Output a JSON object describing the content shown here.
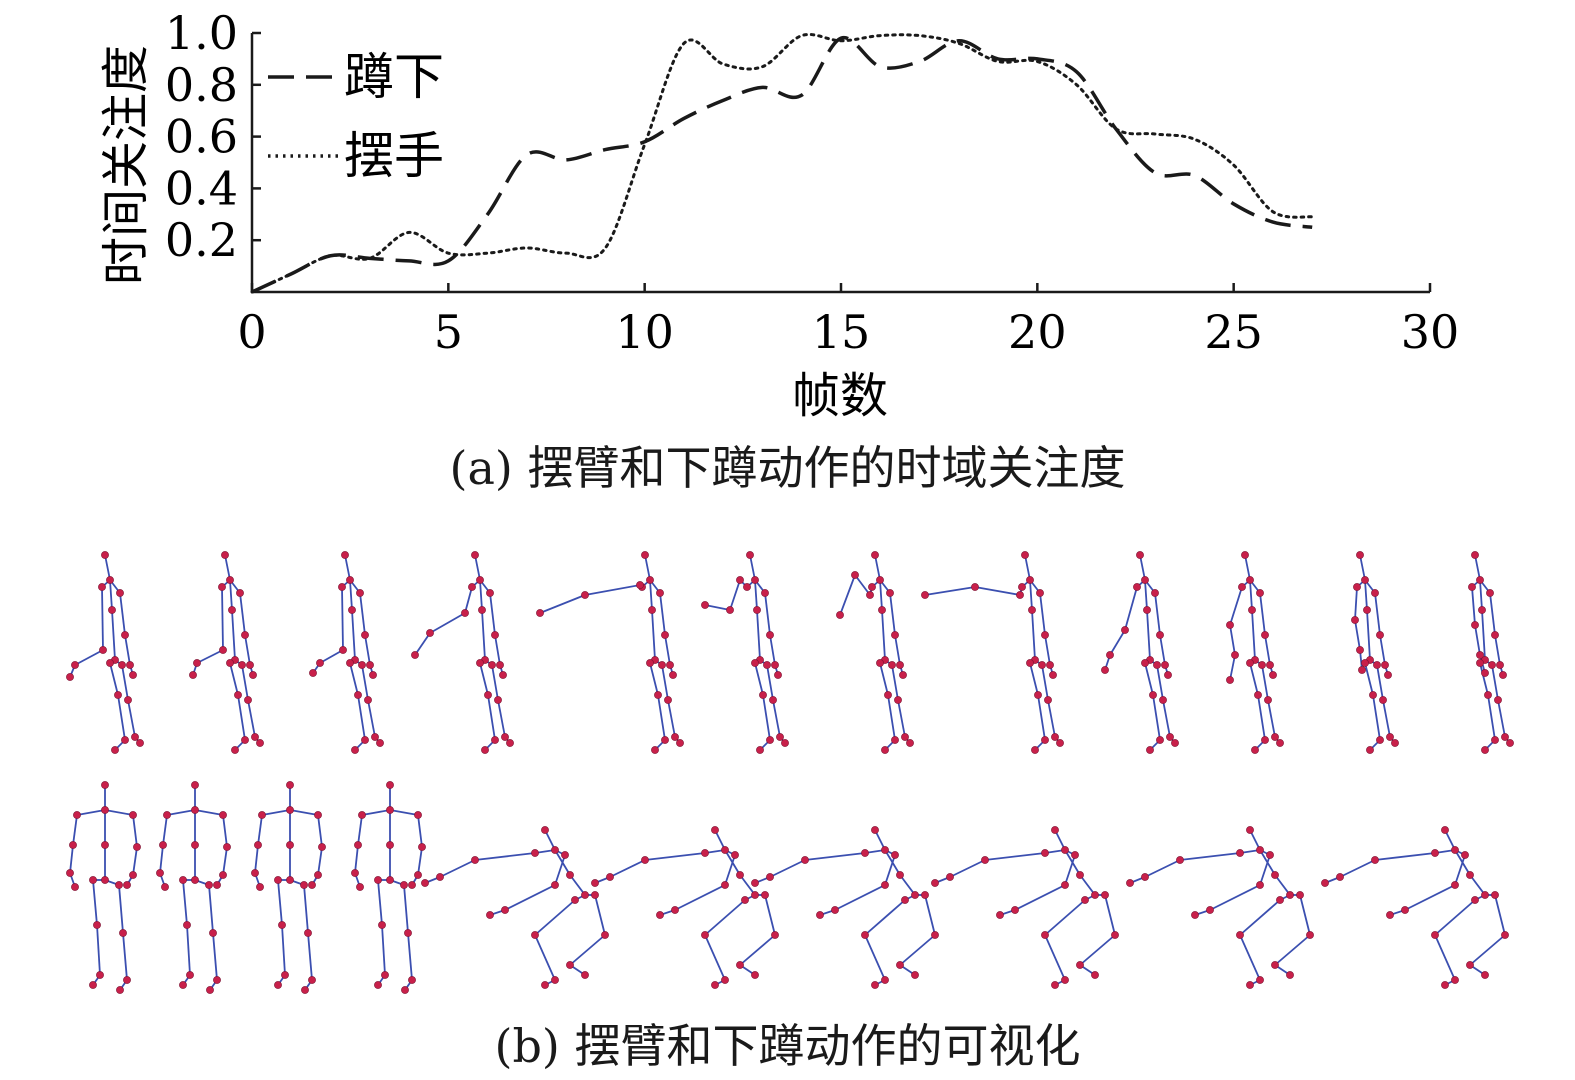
{
  "chart_data": {
    "type": "line",
    "title": "",
    "xlabel": "帧数",
    "ylabel": "时间关注度",
    "xlim": [
      0,
      30
    ],
    "ylim": [
      0,
      1.0
    ],
    "x_ticks": [
      "0",
      "5",
      "10",
      "15",
      "20",
      "25",
      "30"
    ],
    "y_ticks": [
      "0.2",
      "0.4",
      "0.6",
      "0.8",
      "1.0"
    ],
    "grid": false,
    "legend_position": "top-left",
    "series": [
      {
        "name": "蹲下",
        "style": "dashed",
        "color": "#1a1a1a",
        "x": [
          0,
          1,
          2,
          3,
          4,
          5,
          6,
          7,
          8,
          9,
          10,
          11,
          12,
          13,
          14,
          15,
          16,
          17,
          18,
          19,
          20,
          21,
          22,
          23,
          24,
          25,
          26,
          27
        ],
        "y": [
          0.0,
          0.07,
          0.14,
          0.13,
          0.12,
          0.12,
          0.3,
          0.53,
          0.51,
          0.55,
          0.58,
          0.67,
          0.74,
          0.79,
          0.76,
          0.98,
          0.87,
          0.89,
          0.97,
          0.9,
          0.9,
          0.85,
          0.63,
          0.46,
          0.45,
          0.34,
          0.27,
          0.25
        ]
      },
      {
        "name": "摆手",
        "style": "dotted",
        "color": "#1a1a1a",
        "x": [
          0,
          1,
          2,
          3,
          4,
          5,
          6,
          7,
          8,
          9,
          10,
          11,
          12,
          13,
          14,
          15,
          16,
          17,
          18,
          19,
          20,
          21,
          22,
          23,
          24,
          25,
          26,
          27
        ],
        "y": [
          0.0,
          0.07,
          0.14,
          0.13,
          0.23,
          0.15,
          0.15,
          0.17,
          0.15,
          0.17,
          0.57,
          0.96,
          0.88,
          0.87,
          0.99,
          0.97,
          0.99,
          0.99,
          0.96,
          0.89,
          0.89,
          0.8,
          0.63,
          0.61,
          0.59,
          0.49,
          0.31,
          0.29
        ]
      }
    ]
  },
  "captions": {
    "a": "(a) 摆臂和下蹲动作的时域关注度",
    "b": "(b) 摆臂和下蹲动作的可视化"
  },
  "skeleton_colors": {
    "bone": "#3b4fb0",
    "joint": "#c8204a"
  }
}
